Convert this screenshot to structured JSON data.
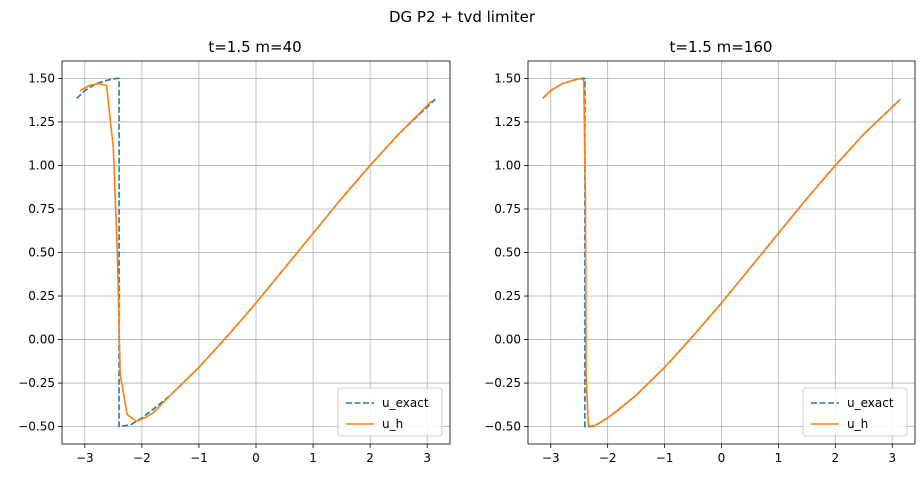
{
  "suptitle": "DG P2 + tvd limiter",
  "colors": {
    "exact": "#1f77b4",
    "approx": "#ff7f0e",
    "grid": "#b0b0b0"
  },
  "chart_data": [
    {
      "type": "line",
      "title": "t=1.5 m=40",
      "xlabel": "",
      "ylabel": "",
      "xlim": [
        -3.4,
        3.4
      ],
      "ylim": [
        -0.6,
        1.6
      ],
      "xticks": [
        -3,
        -2,
        -1,
        0,
        1,
        2,
        3
      ],
      "xtick_labels": [
        "−3",
        "−2",
        "−1",
        "0",
        "1",
        "2",
        "3"
      ],
      "yticks": [
        -0.5,
        -0.25,
        0,
        0.25,
        0.5,
        0.75,
        1.0,
        1.25,
        1.5
      ],
      "ytick_labels": [
        "−0.50",
        "−0.25",
        "0.00",
        "0.25",
        "0.50",
        "0.75",
        "1.00",
        "1.25",
        "1.50"
      ],
      "grid": true,
      "legend": "lower right",
      "series": [
        {
          "name": "u_exact",
          "style": "dashed",
          "x": [
            -3.1416,
            -3.0,
            -2.8,
            -2.6,
            -2.45,
            -2.4,
            -2.4,
            -2.2,
            -2.0,
            -1.8,
            -1.5,
            -1.0,
            -0.5,
            0.0,
            0.5,
            1.0,
            1.5,
            2.0,
            2.5,
            3.1416
          ],
          "y": [
            1.385,
            1.43,
            1.47,
            1.49,
            1.5,
            1.5,
            -0.5,
            -0.49,
            -0.45,
            -0.4,
            -0.32,
            -0.16,
            0.02,
            0.21,
            0.41,
            0.61,
            0.81,
            1.0,
            1.18,
            1.38
          ]
        },
        {
          "name": "u_h",
          "style": "solid",
          "x": [
            -3.08,
            -2.92,
            -2.77,
            -2.62,
            -2.5,
            -2.43,
            -2.38,
            -2.26,
            -2.1,
            -1.95,
            -1.8,
            -1.65,
            -1.5,
            -1.0,
            -0.5,
            0.0,
            0.5,
            1.0,
            1.5,
            2.0,
            2.5,
            3.08
          ],
          "y": [
            1.43,
            1.46,
            1.47,
            1.46,
            1.1,
            0.5,
            -0.2,
            -0.43,
            -0.47,
            -0.45,
            -0.42,
            -0.37,
            -0.32,
            -0.16,
            0.02,
            0.21,
            0.41,
            0.61,
            0.81,
            1.0,
            1.18,
            1.37
          ]
        }
      ]
    },
    {
      "type": "line",
      "title": "t=1.5 m=160",
      "xlabel": "",
      "ylabel": "",
      "xlim": [
        -3.4,
        3.4
      ],
      "ylim": [
        -0.6,
        1.6
      ],
      "xticks": [
        -3,
        -2,
        -1,
        0,
        1,
        2,
        3
      ],
      "xtick_labels": [
        "−3",
        "−2",
        "−1",
        "0",
        "1",
        "2",
        "3"
      ],
      "yticks": [
        -0.5,
        -0.25,
        0,
        0.25,
        0.5,
        0.75,
        1.0,
        1.25,
        1.5
      ],
      "ytick_labels": [
        "−0.50",
        "−0.25",
        "0.00",
        "0.25",
        "0.50",
        "0.75",
        "1.00",
        "1.25",
        "1.50"
      ],
      "grid": true,
      "legend": "lower right",
      "series": [
        {
          "name": "u_exact",
          "style": "dashed",
          "x": [
            -3.1416,
            -3.0,
            -2.8,
            -2.6,
            -2.45,
            -2.4,
            -2.4,
            -2.3,
            -2.2,
            -2.0,
            -1.8,
            -1.5,
            -1.0,
            -0.5,
            0.0,
            0.5,
            1.0,
            1.5,
            2.0,
            2.5,
            3.1416
          ],
          "y": [
            1.385,
            1.43,
            1.47,
            1.49,
            1.5,
            1.5,
            -0.5,
            -0.5,
            -0.49,
            -0.45,
            -0.4,
            -0.32,
            -0.16,
            0.02,
            0.21,
            0.41,
            0.61,
            0.81,
            1.0,
            1.18,
            1.38
          ]
        },
        {
          "name": "u_h",
          "style": "solid",
          "x": [
            -3.1416,
            -3.0,
            -2.8,
            -2.6,
            -2.48,
            -2.42,
            -2.39,
            -2.38,
            -2.34,
            -2.28,
            -2.2,
            -2.0,
            -1.8,
            -1.5,
            -1.0,
            -0.5,
            0.0,
            0.5,
            1.0,
            1.5,
            2.0,
            2.5,
            3.1416
          ],
          "y": [
            1.385,
            1.43,
            1.47,
            1.49,
            1.5,
            1.49,
            0.8,
            -0.2,
            -0.49,
            -0.5,
            -0.49,
            -0.45,
            -0.4,
            -0.32,
            -0.16,
            0.02,
            0.21,
            0.41,
            0.61,
            0.81,
            1.0,
            1.18,
            1.38
          ]
        }
      ]
    }
  ]
}
